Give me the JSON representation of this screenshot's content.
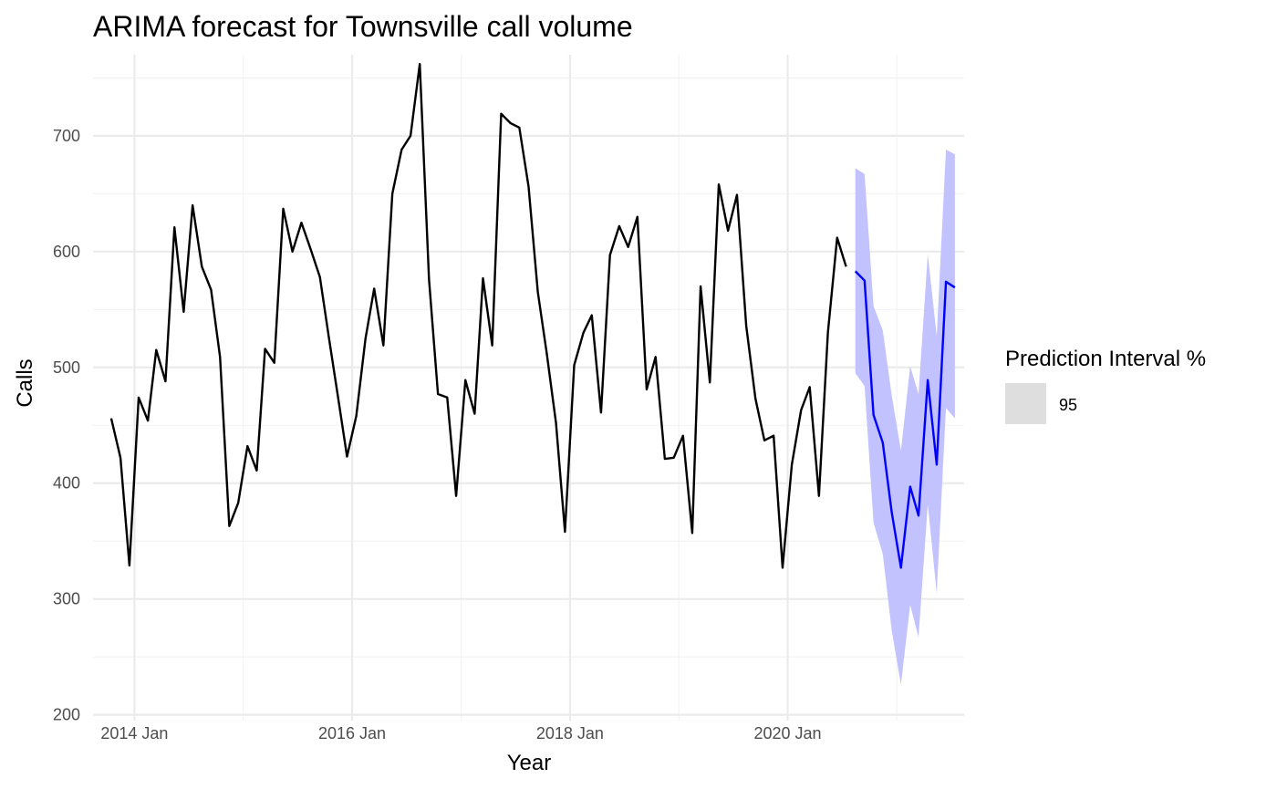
{
  "chart_data": {
    "type": "line",
    "title": "ARIMA forecast for Townsville call volume",
    "xlabel": "Year",
    "ylabel": "Calls",
    "ylim": [
      195,
      770
    ],
    "xlim": [
      "2013-08-15",
      "2021-08-15"
    ],
    "y_ticks": [
      200,
      300,
      400,
      500,
      600,
      700
    ],
    "x_ticks": [
      {
        "date": "2014-01-01",
        "label": "2014 Jan"
      },
      {
        "date": "2016-01-01",
        "label": "2016 Jan"
      },
      {
        "date": "2018-01-01",
        "label": "2018 Jan"
      },
      {
        "date": "2020-01-01",
        "label": "2020 Jan"
      }
    ],
    "grid": true,
    "legend": {
      "title": "Prediction Interval %",
      "entries": [
        "95"
      ],
      "position": "right"
    },
    "series": [
      {
        "x": [
          "2013-10",
          "2013-11",
          "2013-12",
          "2014-01",
          "2014-02",
          "2014-03",
          "2014-04",
          "2014-05",
          "2014-06",
          "2014-07",
          "2014-08",
          "2014-09",
          "2014-10",
          "2014-11",
          "2014-12",
          "2015-01",
          "2015-02",
          "2015-03",
          "2015-04",
          "2015-05",
          "2015-06",
          "2015-07",
          "2015-08",
          "2015-09",
          "2015-10",
          "2015-11",
          "2015-12",
          "2016-01",
          "2016-02",
          "2016-03",
          "2016-04",
          "2016-05",
          "2016-06",
          "2016-07",
          "2016-08",
          "2016-09",
          "2016-10",
          "2016-11",
          "2016-12",
          "2017-01",
          "2017-02",
          "2017-03",
          "2017-04",
          "2017-05",
          "2017-06",
          "2017-07",
          "2017-08",
          "2017-09",
          "2017-10",
          "2017-11",
          "2017-12",
          "2018-01",
          "2018-02",
          "2018-03",
          "2018-04",
          "2018-05",
          "2018-06",
          "2018-07",
          "2018-08",
          "2018-09",
          "2018-10",
          "2018-11",
          "2018-12",
          "2019-01",
          "2019-02",
          "2019-03",
          "2019-04",
          "2019-05",
          "2019-06",
          "2019-07",
          "2019-08",
          "2019-09",
          "2019-10",
          "2019-11",
          "2019-12",
          "2020-01",
          "2020-02",
          "2020-03",
          "2020-04",
          "2020-05",
          "2020-06",
          "2020-07"
        ],
        "values": [
          456,
          422,
          329,
          474,
          454,
          515,
          488,
          621,
          548,
          640,
          587,
          567,
          509,
          363,
          383,
          432,
          411,
          516,
          504,
          637,
          600,
          625,
          602,
          578,
          526,
          474,
          423,
          458,
          525,
          568,
          519,
          650,
          688,
          700,
          762,
          576,
          477,
          474,
          389,
          489,
          460,
          577,
          519,
          719,
          711,
          707,
          656,
          565,
          512,
          452,
          358,
          502,
          530,
          545,
          461,
          597,
          622,
          604,
          630,
          481,
          509,
          421,
          422,
          441,
          357,
          570,
          487,
          658,
          618,
          649,
          536,
          473,
          437,
          441,
          327,
          416,
          463,
          483,
          389,
          530,
          612,
          587
        ],
        "color": "#000000"
      },
      {
        "x": [
          "2020-08",
          "2020-09",
          "2020-10",
          "2020-11",
          "2020-12",
          "2021-01",
          "2021-02",
          "2021-03",
          "2021-04",
          "2021-05",
          "2021-06",
          "2021-07"
        ],
        "values": [
          583,
          575,
          459,
          435,
          375,
          327,
          397,
          372,
          489,
          416,
          574,
          569
        ],
        "lower": [
          495,
          484,
          366,
          339,
          273,
          226,
          295,
          267,
          382,
          305,
          465,
          456
        ],
        "upper": [
          672,
          667,
          553,
          532,
          476,
          428,
          501,
          477,
          598,
          527,
          688,
          684
        ],
        "color": "#0000ff",
        "band_color": "#c2c2ff"
      }
    ]
  }
}
